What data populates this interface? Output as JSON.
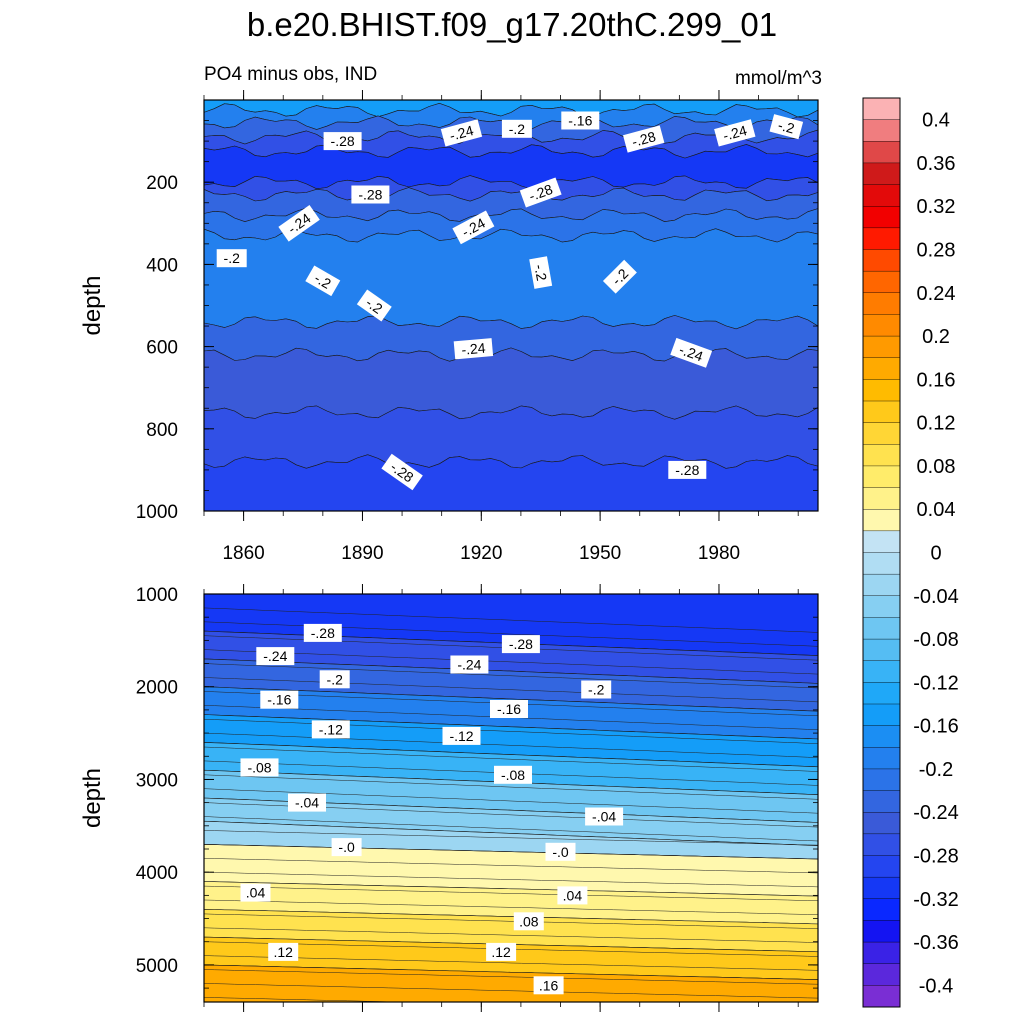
{
  "title": "b.e20.BHIST.f09_g17.20thC.299_01",
  "subtitle_left": "PO4 minus obs, IND",
  "subtitle_right": "mmol/m^3",
  "chart_data": [
    {
      "type": "heatmap",
      "panel": "upper",
      "ylabel": "depth",
      "y_reversed": true,
      "xlim": [
        1850,
        2005
      ],
      "ylim": [
        0,
        1000
      ],
      "x_ticks": [
        1860,
        1890,
        1920,
        1950,
        1980
      ],
      "y_ticks": [
        200,
        400,
        600,
        800,
        1000
      ],
      "bands": [
        {
          "depth_top": 0,
          "depth_bottom": 25,
          "value": -0.15
        },
        {
          "depth_top": 25,
          "depth_bottom": 55,
          "value": -0.19
        },
        {
          "depth_top": 55,
          "depth_bottom": 90,
          "value": -0.23
        },
        {
          "depth_top": 90,
          "depth_bottom": 125,
          "value": -0.27
        },
        {
          "depth_top": 125,
          "depth_bottom": 200,
          "value": -0.31
        },
        {
          "depth_top": 200,
          "depth_bottom": 230,
          "value": -0.27
        },
        {
          "depth_top": 230,
          "depth_bottom": 280,
          "value": -0.23
        },
        {
          "depth_top": 280,
          "depth_bottom": 330,
          "value": -0.21
        },
        {
          "depth_top": 330,
          "depth_bottom": 540,
          "value": -0.19
        },
        {
          "depth_top": 540,
          "depth_bottom": 620,
          "value": -0.22
        },
        {
          "depth_top": 620,
          "depth_bottom": 760,
          "value": -0.25
        },
        {
          "depth_top": 760,
          "depth_bottom": 880,
          "value": -0.27
        },
        {
          "depth_top": 880,
          "depth_bottom": 1000,
          "value": -0.29
        }
      ],
      "contour_depths": [
        25,
        55,
        90,
        125,
        200,
        230,
        260,
        280,
        300,
        330,
        540,
        560,
        620,
        760,
        880
      ],
      "labels": [
        {
          "x": 1885,
          "depth": 100,
          "text": "-.28",
          "rot": 0
        },
        {
          "x": 1915,
          "depth": 80,
          "text": "-.24",
          "rot": 15
        },
        {
          "x": 1929,
          "depth": 70,
          "text": "-.2",
          "rot": 0
        },
        {
          "x": 1945,
          "depth": 50,
          "text": "-.16",
          "rot": 0
        },
        {
          "x": 1961,
          "depth": 95,
          "text": "-.28",
          "rot": 15
        },
        {
          "x": 1984,
          "depth": 80,
          "text": "-.24",
          "rot": 15
        },
        {
          "x": 1997,
          "depth": 65,
          "text": "-.2",
          "rot": -15
        },
        {
          "x": 1892,
          "depth": 230,
          "text": "-.28",
          "rot": 0
        },
        {
          "x": 1935,
          "depth": 225,
          "text": "-.28",
          "rot": 20
        },
        {
          "x": 1874,
          "depth": 300,
          "text": "-.24",
          "rot": 35
        },
        {
          "x": 1918,
          "depth": 310,
          "text": "-.24",
          "rot": 28
        },
        {
          "x": 1857,
          "depth": 385,
          "text": "-.2",
          "rot": 0
        },
        {
          "x": 1880,
          "depth": 440,
          "text": "-.2",
          "rot": -30
        },
        {
          "x": 1935,
          "depth": 420,
          "text": "-.2",
          "rot": -80
        },
        {
          "x": 1955,
          "depth": 430,
          "text": "-.2",
          "rot": 45
        },
        {
          "x": 1893,
          "depth": 500,
          "text": "-.2",
          "rot": -35
        },
        {
          "x": 1918,
          "depth": 605,
          "text": "-.24",
          "rot": 5
        },
        {
          "x": 1973,
          "depth": 615,
          "text": "-.24",
          "rot": -20
        },
        {
          "x": 1900,
          "depth": 905,
          "text": "-.28",
          "rot": -35
        },
        {
          "x": 1972,
          "depth": 900,
          "text": "-.28",
          "rot": 0
        }
      ]
    },
    {
      "type": "heatmap",
      "panel": "lower",
      "ylabel": "depth",
      "y_reversed": true,
      "xlim": [
        1850,
        2005
      ],
      "ylim": [
        1000,
        5400
      ],
      "y_ticks": [
        1000,
        2000,
        3000,
        4000,
        5000
      ],
      "bands": [
        {
          "depth_top": 1000,
          "depth_bottom": 1400,
          "value": -0.31
        },
        {
          "depth_top": 1400,
          "depth_bottom": 1700,
          "value": -0.27
        },
        {
          "depth_top": 1700,
          "depth_bottom": 2000,
          "value": -0.23
        },
        {
          "depth_top": 2000,
          "depth_bottom": 2300,
          "value": -0.19
        },
        {
          "depth_top": 2300,
          "depth_bottom": 2600,
          "value": -0.15
        },
        {
          "depth_top": 2600,
          "depth_bottom": 2900,
          "value": -0.11
        },
        {
          "depth_top": 2900,
          "depth_bottom": 3200,
          "value": -0.07
        },
        {
          "depth_top": 3200,
          "depth_bottom": 3450,
          "value": -0.05
        },
        {
          "depth_top": 3450,
          "depth_bottom": 3700,
          "value": -0.02
        },
        {
          "depth_top": 3700,
          "depth_bottom": 4100,
          "value": 0.02
        },
        {
          "depth_top": 4100,
          "depth_bottom": 4400,
          "value": 0.05
        },
        {
          "depth_top": 4400,
          "depth_bottom": 4700,
          "value": 0.09
        },
        {
          "depth_top": 4700,
          "depth_bottom": 5000,
          "value": 0.13
        },
        {
          "depth_top": 5000,
          "depth_bottom": 5400,
          "value": 0.17
        }
      ],
      "labels": [
        {
          "x": 1880,
          "depth": 1420,
          "text": "-.28",
          "rot": 0
        },
        {
          "x": 1930,
          "depth": 1540,
          "text": "-.28",
          "rot": 0
        },
        {
          "x": 1868,
          "depth": 1670,
          "text": "-.24",
          "rot": 0
        },
        {
          "x": 1917,
          "depth": 1760,
          "text": "-.24",
          "rot": 0
        },
        {
          "x": 1883,
          "depth": 1920,
          "text": "-.2",
          "rot": 0
        },
        {
          "x": 1949,
          "depth": 2030,
          "text": "-.2",
          "rot": 0
        },
        {
          "x": 1869,
          "depth": 2140,
          "text": "-.16",
          "rot": 0
        },
        {
          "x": 1927,
          "depth": 2240,
          "text": "-.16",
          "rot": 0
        },
        {
          "x": 1882,
          "depth": 2460,
          "text": "-.12",
          "rot": 0
        },
        {
          "x": 1915,
          "depth": 2530,
          "text": "-.12",
          "rot": 0
        },
        {
          "x": 1864,
          "depth": 2870,
          "text": "-.08",
          "rot": 0
        },
        {
          "x": 1928,
          "depth": 2950,
          "text": "-.08",
          "rot": 0
        },
        {
          "x": 1876,
          "depth": 3250,
          "text": "-.04",
          "rot": 0
        },
        {
          "x": 1951,
          "depth": 3400,
          "text": "-.04",
          "rot": 0
        },
        {
          "x": 1886,
          "depth": 3730,
          "text": "-.0",
          "rot": 0
        },
        {
          "x": 1940,
          "depth": 3780,
          "text": "-.0",
          "rot": 0
        },
        {
          "x": 1863,
          "depth": 4220,
          "text": ".04",
          "rot": 0
        },
        {
          "x": 1943,
          "depth": 4250,
          "text": ".04",
          "rot": 0
        },
        {
          "x": 1932,
          "depth": 4530,
          "text": ".08",
          "rot": 0
        },
        {
          "x": 1870,
          "depth": 4860,
          "text": ".12",
          "rot": 0
        },
        {
          "x": 1925,
          "depth": 4860,
          "text": ".12",
          "rot": 0
        },
        {
          "x": 1937,
          "depth": 5220,
          "text": ".16",
          "rot": 0
        }
      ]
    }
  ],
  "colorbar": {
    "labels": [
      "0.4",
      "0.36",
      "0.32",
      "0.28",
      "0.24",
      "0.2",
      "0.16",
      "0.12",
      "0.08",
      "0.04",
      "0",
      "-0.04",
      "-0.08",
      "-0.12",
      "-0.16",
      "-0.2",
      "-0.24",
      "-0.28",
      "-0.32",
      "-0.36",
      "-0.4"
    ],
    "colors": [
      "#fbb2b4",
      "#f07d7f",
      "#e04848",
      "#cf1a1a",
      "#e30a0a",
      "#f20000",
      "#ff1a00",
      "#ff4a00",
      "#ff6600",
      "#ff7c00",
      "#ff8a00",
      "#ff9a00",
      "#ffaa00",
      "#ffbb00",
      "#ffc91a",
      "#ffd635",
      "#ffe24f",
      "#ffec6a",
      "#fff28a",
      "#fff8ae",
      "#c3e3f4",
      "#b0ddf3",
      "#9cd6f2",
      "#86cff2",
      "#6ec6f2",
      "#55bdf3",
      "#38b3f6",
      "#1fa8f8",
      "#149df8",
      "#1b8ef3",
      "#2380ee",
      "#2b73e8",
      "#3366e0",
      "#3a5ad8",
      "#3150e6",
      "#2445f0",
      "#1538f5",
      "#0a28ff",
      "#1414f2",
      "#3a22e6",
      "#5b28dc",
      "#7a2ed4"
    ]
  }
}
